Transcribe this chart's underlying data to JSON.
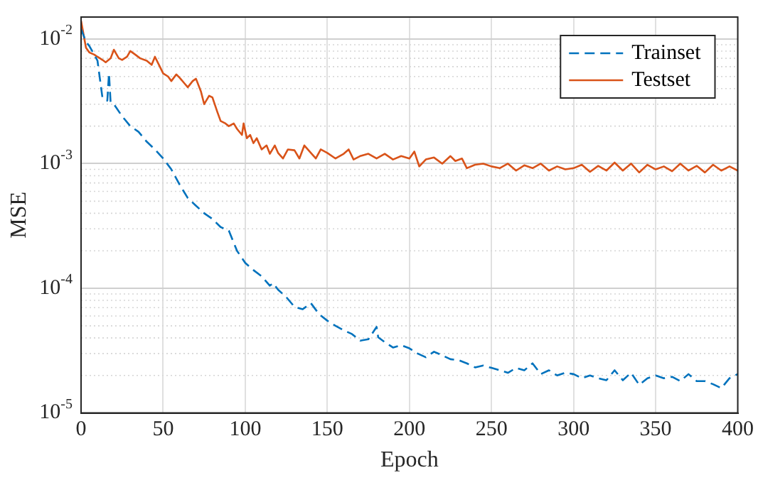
{
  "chart_data": {
    "type": "line",
    "xlabel": "Epoch",
    "ylabel": "MSE",
    "log": "y",
    "grid": true,
    "legend": "top right",
    "marker": "none",
    "xlim": [
      0,
      400
    ],
    "xticks": [
      0,
      50,
      100,
      150,
      200,
      250,
      300,
      350,
      400
    ],
    "ylim": [
      1e-05,
      0.015
    ],
    "yticks": [
      {
        "value": 1e-05,
        "label": "10$^{-5}$"
      },
      {
        "value": 0.0001,
        "label": "10$^{-4}$"
      },
      {
        "value": 0.001,
        "label": "10$^{-3}$"
      },
      {
        "value": 0.01,
        "label": "10$^{-2}$"
      }
    ],
    "series": [
      {
        "name": "Trainset",
        "color": "#0072bd",
        "line_style": "dashed",
        "x": [
          0,
          3,
          5,
          8,
          10,
          13,
          15,
          16,
          17,
          18,
          20,
          25,
          30,
          35,
          40,
          45,
          50,
          55,
          60,
          65,
          70,
          75,
          80,
          85,
          90,
          95,
          100,
          105,
          110,
          115,
          117,
          120,
          125,
          130,
          135,
          140,
          145,
          150,
          155,
          160,
          165,
          170,
          175,
          180,
          181,
          185,
          190,
          195,
          200,
          205,
          210,
          215,
          220,
          225,
          230,
          235,
          240,
          245,
          250,
          255,
          260,
          265,
          270,
          275,
          280,
          285,
          290,
          295,
          300,
          305,
          310,
          315,
          320,
          325,
          330,
          335,
          340,
          345,
          350,
          355,
          360,
          365,
          370,
          375,
          380,
          385,
          390,
          395,
          400
        ],
        "values": [
          0.012,
          0.0095,
          0.0088,
          0.0075,
          0.0067,
          0.0034,
          0.0032,
          0.0032,
          0.0053,
          0.0031,
          0.003,
          0.0024,
          0.002,
          0.0018,
          0.0015,
          0.0013,
          0.0011,
          0.0009,
          0.00068,
          0.00053,
          0.00046,
          0.0004,
          0.00036,
          0.00031,
          0.00029,
          0.0002,
          0.00016,
          0.00014,
          0.000125,
          0.000105,
          0.00011,
          9.75e-05,
          8.5e-05,
          7.1e-05,
          6.8e-05,
          7.6e-05,
          6.2e-05,
          5.5e-05,
          5e-05,
          4.6e-05,
          4.3e-05,
          3.8e-05,
          3.9e-05,
          4.9e-05,
          4.05e-05,
          3.7e-05,
          3.35e-05,
          3.5e-05,
          3.3e-05,
          3e-05,
          2.8e-05,
          3.1e-05,
          2.9e-05,
          2.7e-05,
          2.65e-05,
          2.5e-05,
          2.32e-05,
          2.4e-05,
          2.3e-05,
          2.2e-05,
          2.1e-05,
          2.3e-05,
          2.2e-05,
          2.5e-05,
          2.05e-05,
          2.2e-05,
          2e-05,
          2.1e-05,
          2.05e-05,
          1.9e-05,
          2e-05,
          1.9e-05,
          1.83e-05,
          2.2e-05,
          1.83e-05,
          2.1e-05,
          1.68e-05,
          1.9e-05,
          2e-05,
          1.9e-05,
          1.95e-05,
          1.8e-05,
          2.05e-05,
          1.8e-05,
          1.8e-05,
          1.7e-05,
          1.58e-05,
          1.9e-05,
          2.05e-05
        ]
      },
      {
        "name": "Testset",
        "color": "#d95319",
        "line_style": "solid",
        "x": [
          0,
          3,
          5,
          8,
          10,
          13,
          15,
          18,
          20,
          23,
          25,
          28,
          30,
          33,
          36,
          40,
          43,
          45,
          48,
          50,
          53,
          55,
          58,
          60,
          63,
          65,
          68,
          70,
          73,
          75,
          78,
          80,
          83,
          85,
          88,
          90,
          93,
          95,
          98,
          99,
          101,
          103,
          105,
          107,
          110,
          113,
          115,
          118,
          120,
          123,
          126,
          130,
          133,
          136,
          140,
          143,
          146,
          150,
          155,
          160,
          163,
          166,
          170,
          175,
          180,
          185,
          190,
          195,
          200,
          203,
          206,
          210,
          215,
          220,
          225,
          228,
          232,
          235,
          240,
          245,
          250,
          255,
          260,
          265,
          270,
          275,
          280,
          285,
          290,
          295,
          300,
          305,
          310,
          315,
          320,
          325,
          330,
          335,
          340,
          345,
          350,
          355,
          360,
          365,
          370,
          375,
          380,
          385,
          390,
          395,
          400
        ],
        "values": [
          0.014,
          0.0085,
          0.0078,
          0.0075,
          0.0072,
          0.0068,
          0.0065,
          0.007,
          0.0082,
          0.007,
          0.0068,
          0.0072,
          0.008,
          0.0075,
          0.007,
          0.0067,
          0.0062,
          0.0072,
          0.006,
          0.0053,
          0.005,
          0.0046,
          0.0052,
          0.0049,
          0.0044,
          0.0041,
          0.0046,
          0.0048,
          0.0038,
          0.003,
          0.0035,
          0.0034,
          0.0026,
          0.0022,
          0.0021,
          0.002,
          0.0021,
          0.0019,
          0.0017,
          0.0021,
          0.0016,
          0.0017,
          0.00146,
          0.0016,
          0.0013,
          0.0014,
          0.0012,
          0.0014,
          0.00122,
          0.0011,
          0.0013,
          0.00128,
          0.0011,
          0.0014,
          0.00122,
          0.0011,
          0.0013,
          0.00122,
          0.0011,
          0.0012,
          0.0013,
          0.00108,
          0.00115,
          0.0012,
          0.0011,
          0.0012,
          0.00108,
          0.00115,
          0.0011,
          0.00125,
          0.00095,
          0.00108,
          0.00112,
          0.001,
          0.00115,
          0.00105,
          0.0011,
          0.00092,
          0.00098,
          0.001,
          0.00095,
          0.00092,
          0.001,
          0.00088,
          0.00097,
          0.00092,
          0.001,
          0.00088,
          0.00095,
          0.0009,
          0.00092,
          0.00098,
          0.00086,
          0.00096,
          0.00088,
          0.00102,
          0.00088,
          0.001,
          0.00085,
          0.00098,
          0.0009,
          0.00095,
          0.00087,
          0.001,
          0.00088,
          0.00096,
          0.00085,
          0.00098,
          0.00088,
          0.00095,
          0.00088
        ]
      }
    ]
  }
}
